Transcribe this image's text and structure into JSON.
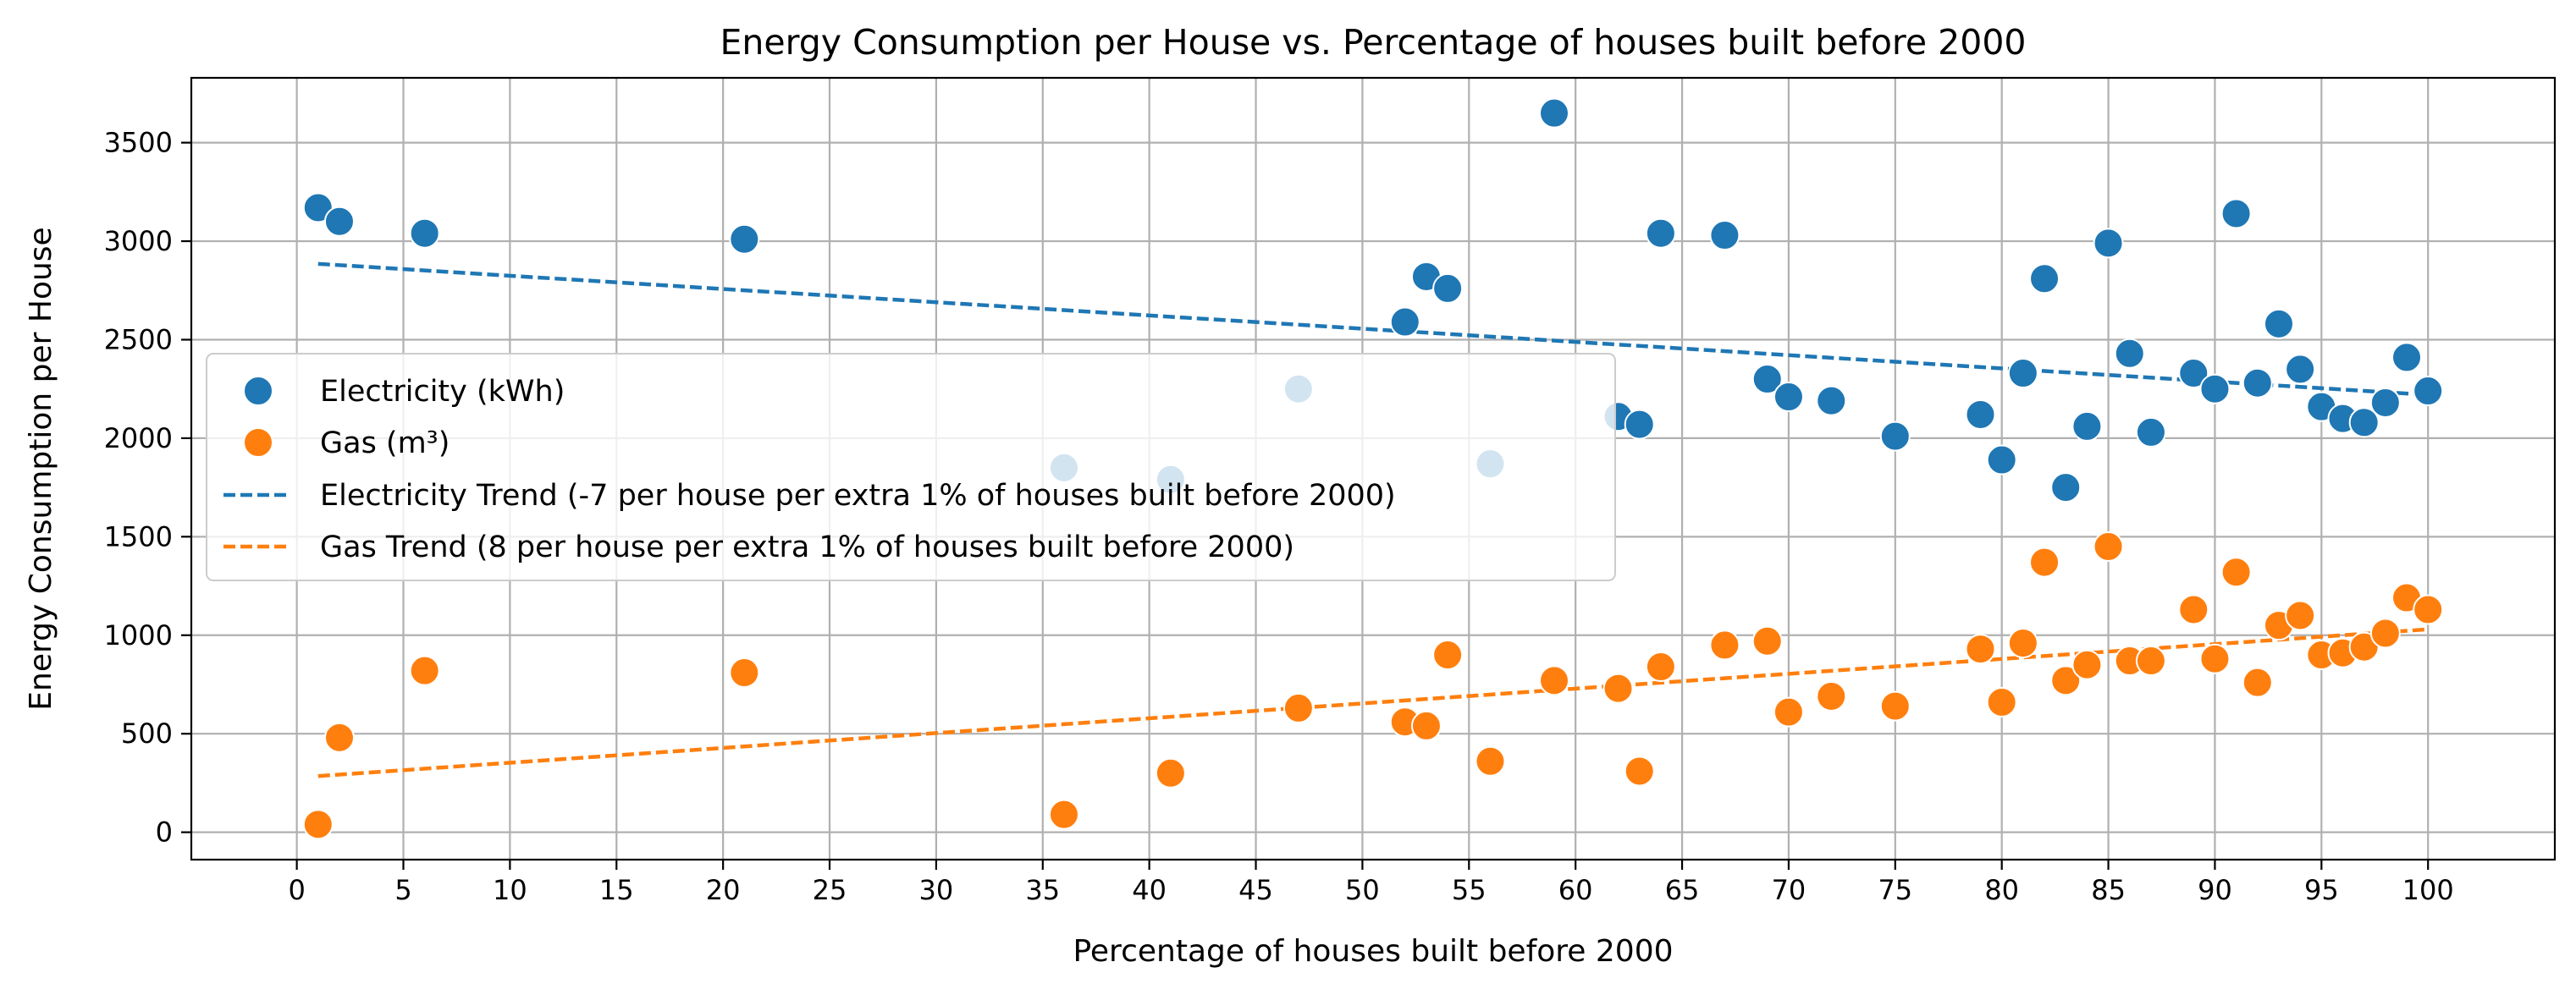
{
  "chart_data": {
    "type": "scatter",
    "title": "Energy Consumption per House vs. Percentage of houses built before 2000",
    "xlabel": "Percentage of houses built before 2000",
    "ylabel": "Energy Consumption per House",
    "xlim": [
      -4.95,
      105.95
    ],
    "ylim": [
      -139,
      3829
    ],
    "xticks": [
      0,
      5,
      10,
      15,
      20,
      25,
      30,
      35,
      40,
      45,
      50,
      55,
      60,
      65,
      70,
      75,
      80,
      85,
      90,
      95,
      100
    ],
    "yticks": [
      0,
      500,
      1000,
      1500,
      2000,
      2500,
      3000,
      3500
    ],
    "grid": true,
    "legend_position": "center-left",
    "series": [
      {
        "name": "Electricity (kWh)",
        "kind": "scatter",
        "color": "#1f77b4",
        "points": [
          [
            1,
            3170
          ],
          [
            2,
            3100
          ],
          [
            6,
            3040
          ],
          [
            21,
            3010
          ],
          [
            36,
            1850
          ],
          [
            41,
            1790
          ],
          [
            47,
            2250
          ],
          [
            52,
            2590
          ],
          [
            53,
            2820
          ],
          [
            54,
            2760
          ],
          [
            56,
            1870
          ],
          [
            59,
            3650
          ],
          [
            62,
            2110
          ],
          [
            63,
            2070
          ],
          [
            64,
            3040
          ],
          [
            67,
            3030
          ],
          [
            69,
            2300
          ],
          [
            70,
            2210
          ],
          [
            72,
            2190
          ],
          [
            75,
            2010
          ],
          [
            79,
            2120
          ],
          [
            80,
            1890
          ],
          [
            81,
            2330
          ],
          [
            82,
            2810
          ],
          [
            83,
            1750
          ],
          [
            84,
            2060
          ],
          [
            85,
            2990
          ],
          [
            86,
            2430
          ],
          [
            87,
            2030
          ],
          [
            89,
            2330
          ],
          [
            90,
            2250
          ],
          [
            91,
            3140
          ],
          [
            92,
            2280
          ],
          [
            93,
            2580
          ],
          [
            94,
            2350
          ],
          [
            95,
            2160
          ],
          [
            96,
            2100
          ],
          [
            97,
            2080
          ],
          [
            98,
            2180
          ],
          [
            99,
            2410
          ],
          [
            100,
            2240
          ]
        ]
      },
      {
        "name": "Gas (m³)",
        "kind": "scatter",
        "color": "#ff7f0e",
        "points": [
          [
            1,
            40
          ],
          [
            2,
            480
          ],
          [
            6,
            820
          ],
          [
            21,
            810
          ],
          [
            36,
            90
          ],
          [
            41,
            300
          ],
          [
            47,
            630
          ],
          [
            52,
            560
          ],
          [
            53,
            540
          ],
          [
            54,
            900
          ],
          [
            56,
            360
          ],
          [
            59,
            770
          ],
          [
            62,
            730
          ],
          [
            63,
            310
          ],
          [
            64,
            840
          ],
          [
            67,
            950
          ],
          [
            69,
            970
          ],
          [
            70,
            610
          ],
          [
            72,
            690
          ],
          [
            75,
            640
          ],
          [
            79,
            930
          ],
          [
            80,
            660
          ],
          [
            81,
            960
          ],
          [
            82,
            1370
          ],
          [
            83,
            770
          ],
          [
            84,
            850
          ],
          [
            85,
            1450
          ],
          [
            86,
            870
          ],
          [
            87,
            870
          ],
          [
            89,
            1130
          ],
          [
            90,
            880
          ],
          [
            91,
            1320
          ],
          [
            92,
            760
          ],
          [
            93,
            1050
          ],
          [
            94,
            1100
          ],
          [
            95,
            900
          ],
          [
            96,
            910
          ],
          [
            97,
            940
          ],
          [
            98,
            1010
          ],
          [
            99,
            1190
          ],
          [
            100,
            1130
          ]
        ]
      },
      {
        "name": "Electricity Trend (-7 per house per extra 1% of houses built before 2000)",
        "kind": "trend",
        "color": "#1f77b4",
        "points": [
          [
            1,
            2885
          ],
          [
            100,
            2220
          ]
        ]
      },
      {
        "name": "Gas Trend (8 per house per extra 1% of houses built before 2000)",
        "kind": "trend",
        "color": "#ff7f0e",
        "points": [
          [
            1,
            285
          ],
          [
            100,
            1030
          ]
        ]
      }
    ]
  }
}
